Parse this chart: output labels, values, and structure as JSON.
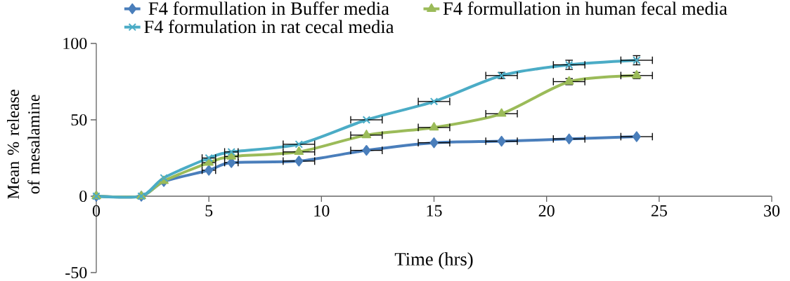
{
  "chart_data": {
    "type": "line",
    "xlabel": "Time (hrs)",
    "ylabel": "Mean % release of mesalamine",
    "x": [
      0,
      2,
      3,
      5,
      6,
      9,
      12,
      15,
      18,
      21,
      24
    ],
    "series": [
      {
        "name": "F4 formullation in Buffer media",
        "color": "#4a7ebb",
        "marker": "diamond",
        "values": [
          0,
          0,
          9.6,
          17,
          22,
          23,
          30,
          35,
          36,
          37.5,
          39
        ],
        "xerrors": [
          null,
          null,
          null,
          0.3,
          0.3,
          0.7,
          0.7,
          0.7,
          0.7,
          0.7,
          0.7
        ]
      },
      {
        "name": "F4 formullation in human fecal media",
        "color": "#9bbb59",
        "marker": "triangle",
        "values": [
          0,
          0,
          10,
          22,
          26,
          29,
          40,
          45,
          54,
          75,
          79
        ],
        "xerrors": [
          null,
          null,
          null,
          0.3,
          0.3,
          0.7,
          0.7,
          0.7,
          0.7,
          0.7,
          0.7
        ],
        "errors": [
          null,
          null,
          null,
          null,
          null,
          null,
          null,
          null,
          null,
          2,
          2
        ]
      },
      {
        "name": "F4 formulation in rat cecal media",
        "color": "#4bacc6",
        "marker": "cross",
        "values": [
          0,
          0,
          12,
          25,
          29,
          34,
          50,
          62,
          79,
          86,
          89
        ],
        "xerrors": [
          null,
          null,
          null,
          0.3,
          0.3,
          0.7,
          0.7,
          0.7,
          0.7,
          0.7,
          0.7
        ],
        "errors": [
          null,
          null,
          null,
          null,
          null,
          null,
          null,
          null,
          2,
          3,
          3
        ]
      }
    ],
    "xlim": [
      0,
      30
    ],
    "xticks": [
      0,
      5,
      10,
      15,
      20,
      25,
      30
    ],
    "ylim": [
      -50,
      100
    ],
    "yticks": [
      -50,
      0,
      50,
      100
    ],
    "legend": "top",
    "grid": false
  }
}
